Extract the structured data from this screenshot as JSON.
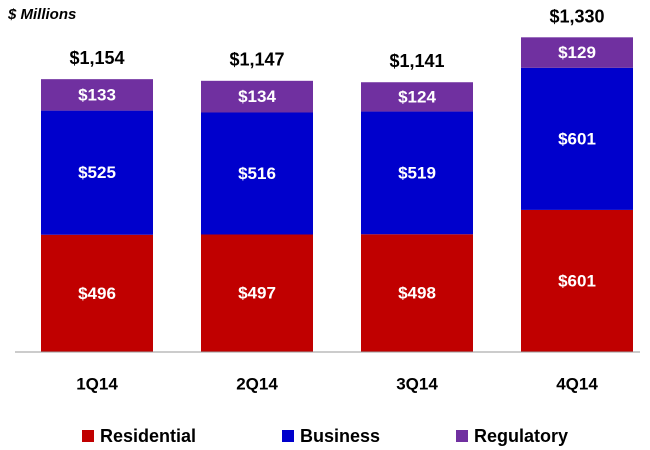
{
  "chart_data": {
    "type": "stacked_bar",
    "subtitle": "$ Millions",
    "categories": [
      "1Q14",
      "2Q14",
      "3Q14",
      "4Q14"
    ],
    "series": [
      {
        "name": "Residential",
        "color": "#c00000",
        "values": [
          496,
          497,
          498,
          601
        ],
        "value_labels": [
          "$496",
          "$497",
          "$498",
          "$601"
        ]
      },
      {
        "name": "Business",
        "color": "#0000cc",
        "values": [
          525,
          516,
          519,
          601
        ],
        "value_labels": [
          "$525",
          "$516",
          "$519",
          "$601"
        ]
      },
      {
        "name": "Regulatory",
        "color": "#7030a0",
        "values": [
          133,
          134,
          124,
          129
        ],
        "value_labels": [
          "$133",
          "$134",
          "$124",
          "$129"
        ]
      }
    ],
    "totals": [
      1154,
      1147,
      1141,
      1330
    ],
    "total_labels": [
      "$1,154",
      "$1,147",
      "$1,141",
      "$1,330"
    ],
    "ylim": [
      0,
      1400
    ],
    "legend": "bottom"
  }
}
